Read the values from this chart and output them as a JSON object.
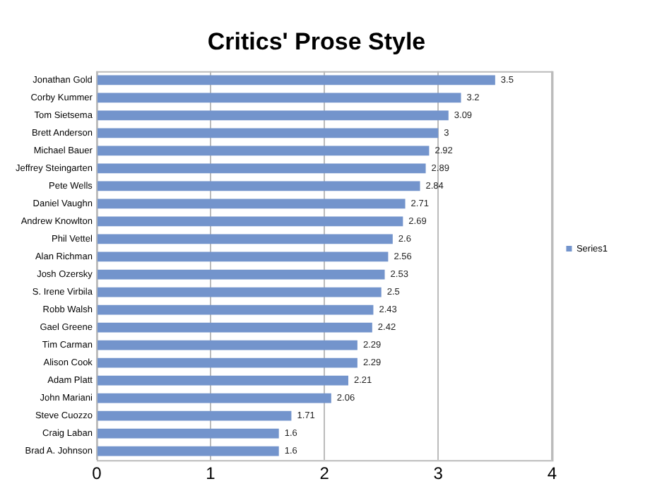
{
  "chart_data": {
    "type": "bar",
    "title": "Critics' Prose Style",
    "orientation": "horizontal",
    "categories": [
      "Jonathan Gold",
      "Corby Kummer",
      "Tom Sietsema",
      "Brett Anderson",
      "Michael Bauer",
      "Jeffrey Steingarten",
      "Pete Wells",
      "Daniel Vaughn",
      "Andrew Knowlton",
      "Phil Vettel",
      "Alan Richman",
      "Josh Ozersky",
      "S. Irene Virbila",
      "Robb Walsh",
      "Gael Greene",
      "Tim Carman",
      "Alison Cook",
      "Adam Platt",
      "John Mariani",
      "Steve Cuozzo",
      "Craig Laban",
      "Brad A. Johnson"
    ],
    "series": [
      {
        "name": "Series1",
        "color": "#7394cc",
        "values": [
          3.5,
          3.2,
          3.09,
          3,
          2.92,
          2.89,
          2.84,
          2.71,
          2.69,
          2.6,
          2.56,
          2.53,
          2.5,
          2.43,
          2.42,
          2.29,
          2.29,
          2.21,
          2.06,
          1.71,
          1.6,
          1.6
        ]
      }
    ],
    "xlim": [
      0,
      4
    ],
    "xticks": [
      0,
      1,
      2,
      3,
      4
    ],
    "grid": "x",
    "legend": "right",
    "data_labels": true
  }
}
